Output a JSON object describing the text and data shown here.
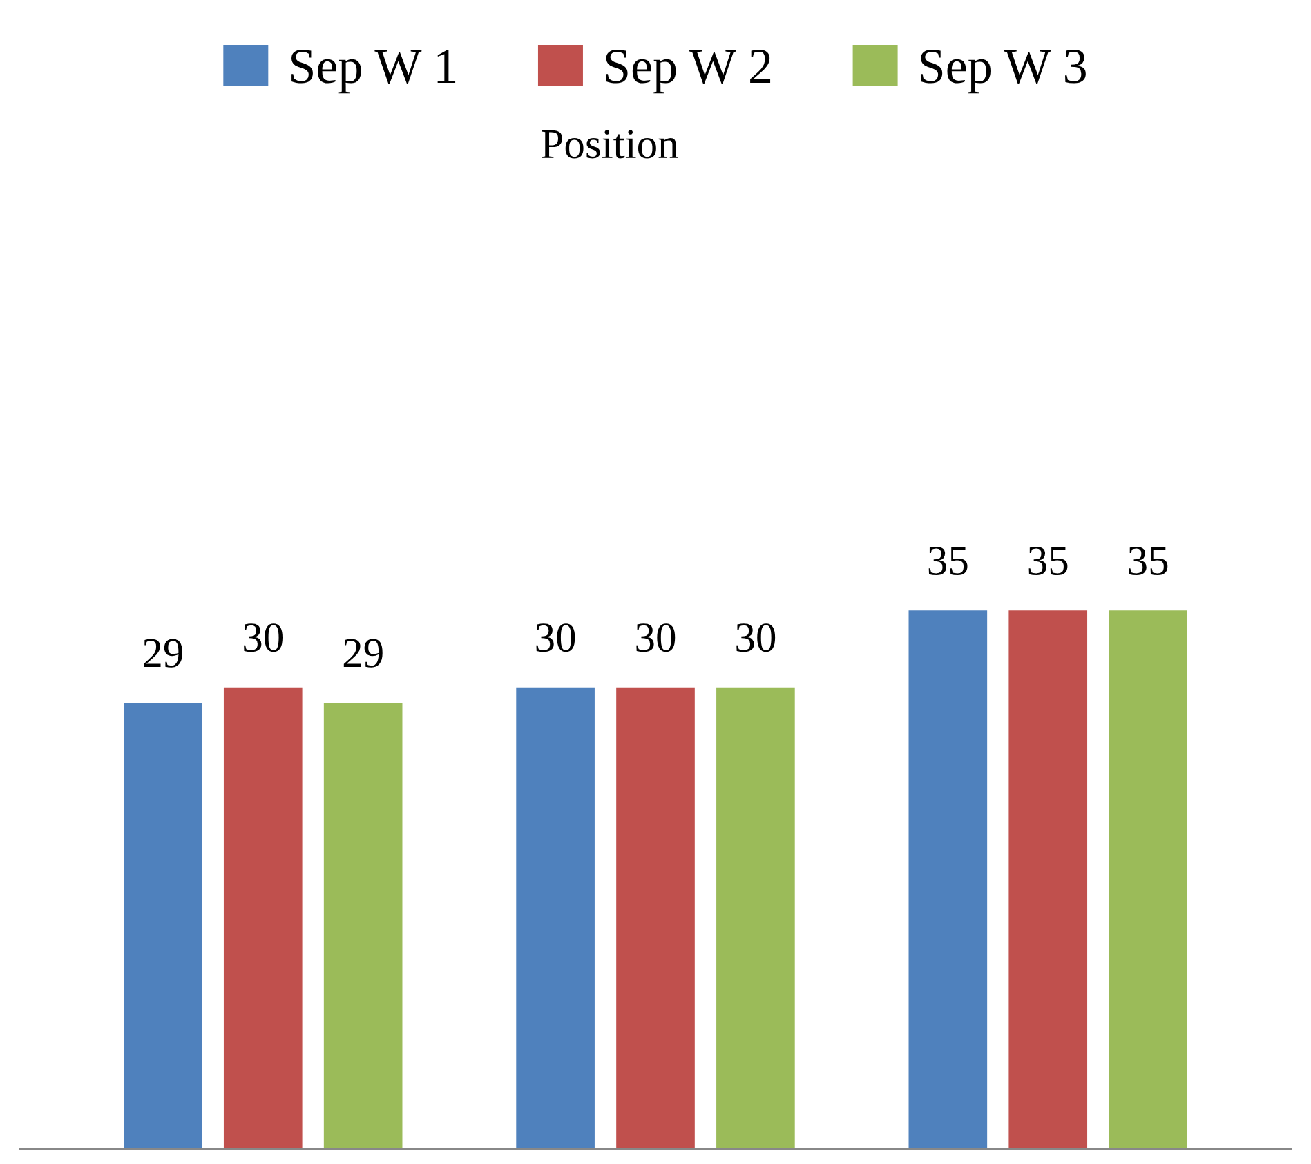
{
  "chart_data": {
    "type": "bar",
    "title": "Position",
    "categories": [
      null,
      null,
      null
    ],
    "series": [
      {
        "name": "Sep W 1",
        "color": "#4f81bd",
        "values": [
          29,
          30,
          35
        ]
      },
      {
        "name": "Sep W 2",
        "color": "#c0504d",
        "values": [
          30,
          30,
          35
        ]
      },
      {
        "name": "Sep W 3",
        "color": "#9bbb59",
        "values": [
          29,
          30,
          35
        ]
      }
    ],
    "data_labels": true,
    "legend": "top",
    "grid": false
  }
}
